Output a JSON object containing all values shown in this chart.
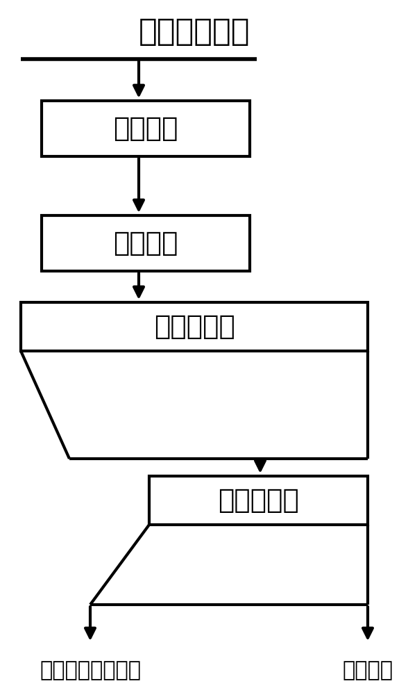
{
  "title": "正负电极粉末",
  "box1": "高温热解",
  "box2": "擦洗解离",
  "box3": "浮选柱浮选",
  "box4": "高梯度磁选",
  "output_left": "负极材料（石墨）",
  "output_right": "正极材料",
  "bg_color": "#ffffff",
  "line_color": "#000000",
  "text_color": "#000000",
  "font_size_title": 32,
  "font_size_box": 28,
  "font_size_output": 22,
  "lw": 3.0
}
